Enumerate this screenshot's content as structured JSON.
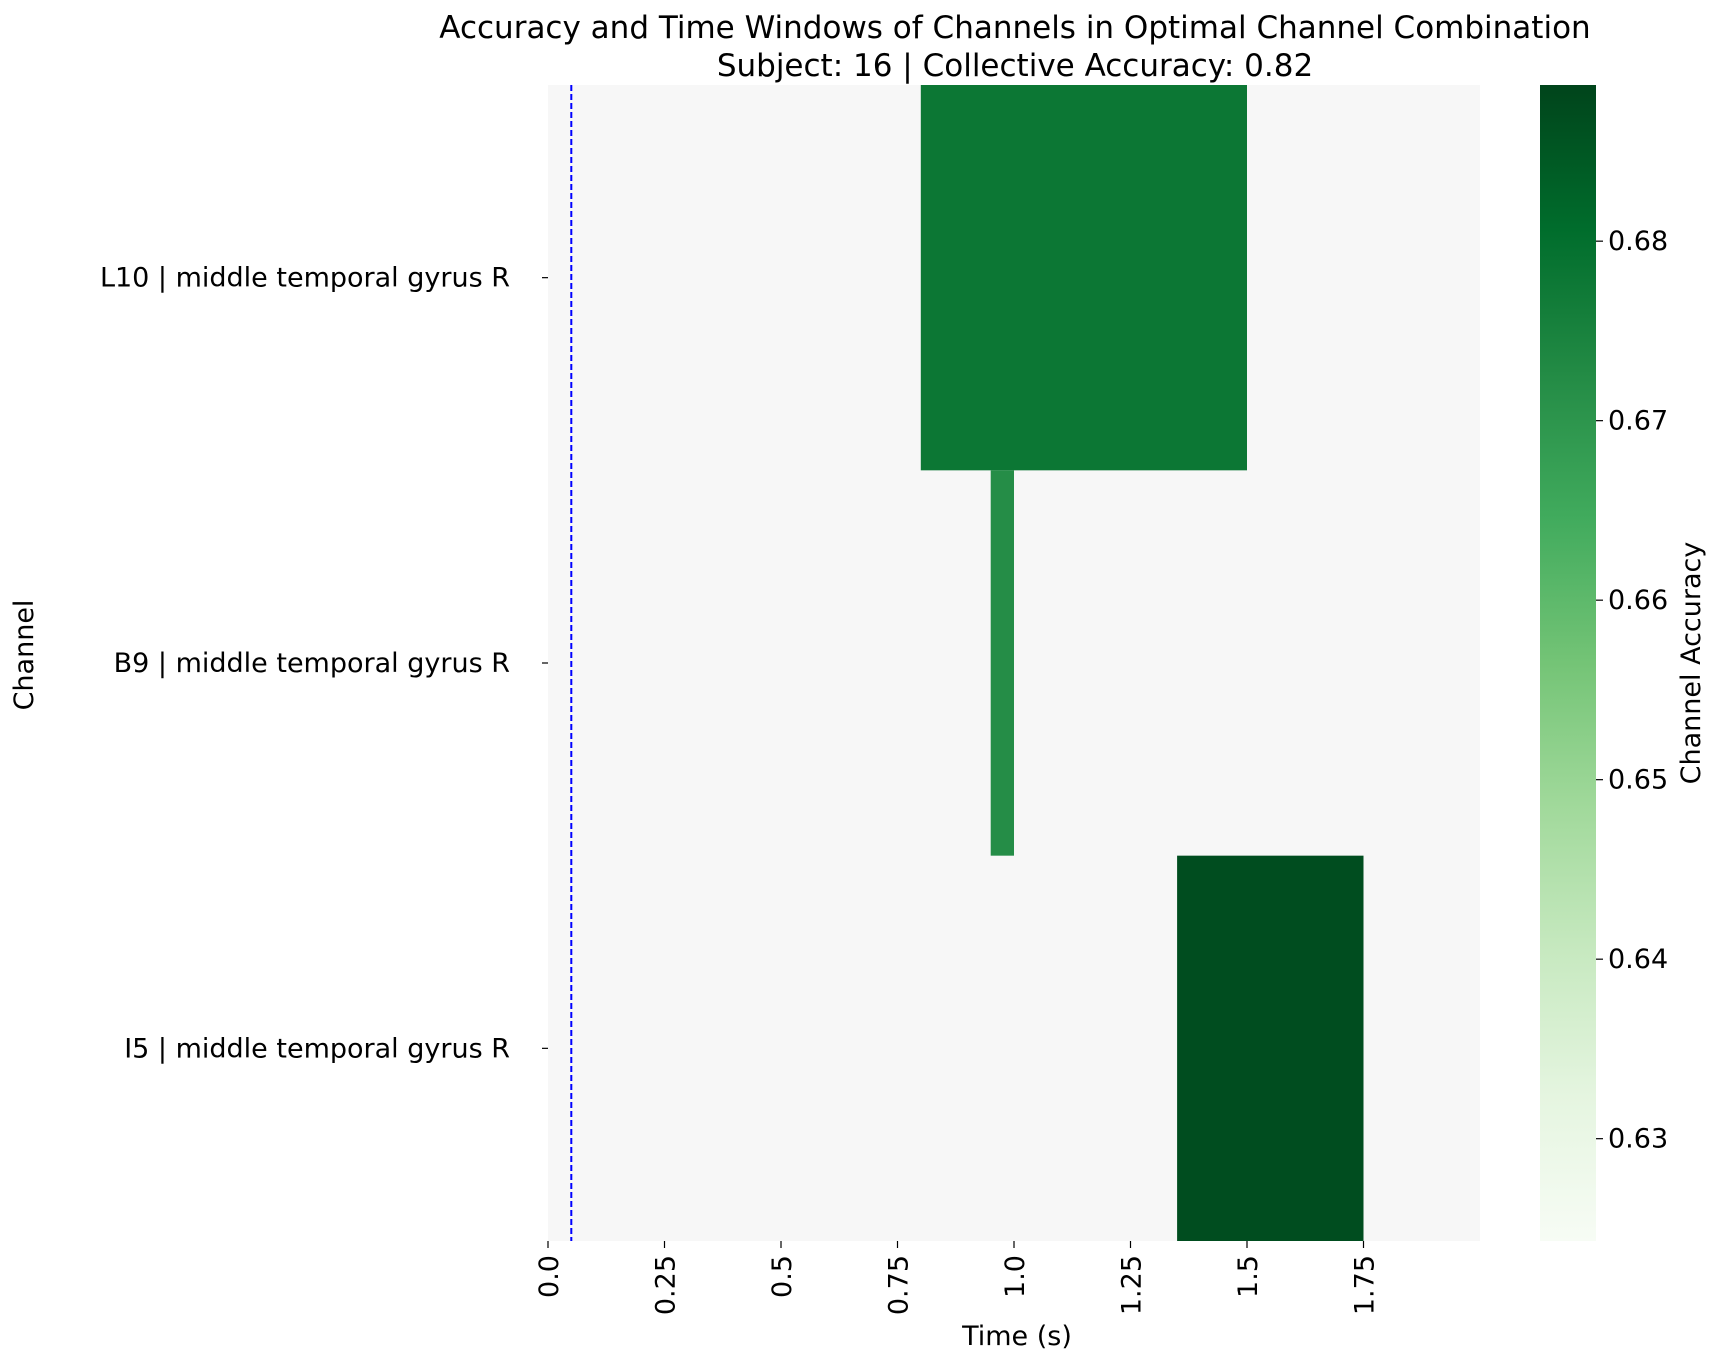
{
  "chart_data": {
    "type": "heatmap",
    "title": "Accuracy and Time Windows of Channels in Optimal Channel Combination",
    "subtitle": "Subject: 16 | Collective Accuracy: 0.82",
    "xlabel": "Time (s)",
    "ylabel": "Channel",
    "xlim": [
      0,
      2.0
    ],
    "x_ticks": [
      0,
      0.25,
      0.5,
      0.75,
      1.0,
      1.25,
      1.5,
      1.75
    ],
    "x_tick_labels": [
      "0.0",
      "0.25",
      "0.5",
      "0.75",
      "1.0",
      "1.25",
      "1.5",
      "1.75"
    ],
    "channels": [
      "L10 | middle temporal gyrus R",
      "B9 | middle temporal gyrus R",
      "I5 | middle temporal gyrus R"
    ],
    "windows": [
      {
        "channel": "L10 | middle temporal gyrus R",
        "start": 0.8,
        "end": 1.5,
        "accuracy": 0.678
      },
      {
        "channel": "B9 | middle temporal gyrus R",
        "start": 0.95,
        "end": 1.0,
        "accuracy": 0.672
      },
      {
        "channel": "I5 | middle temporal gyrus R",
        "start": 1.35,
        "end": 1.75,
        "accuracy": 0.687
      }
    ],
    "background_color": "#f7f7f7",
    "reference_line": {
      "x": 0.05,
      "color": "#0000ff",
      "style": "dashed"
    },
    "colorbar": {
      "label": "Channel Accuracy",
      "range": [
        0.6243,
        0.6887
      ],
      "ticks": [
        0.63,
        0.64,
        0.65,
        0.66,
        0.67,
        0.68
      ],
      "tick_labels": [
        "0.63",
        "0.64",
        "0.65",
        "0.66",
        "0.67",
        "0.68"
      ],
      "colormap": [
        "#f7fcf5",
        "#e5f5e0",
        "#c7e9c0",
        "#a1d99b",
        "#74c476",
        "#41ab5d",
        "#238b45",
        "#006d2c",
        "#00441b"
      ]
    }
  }
}
